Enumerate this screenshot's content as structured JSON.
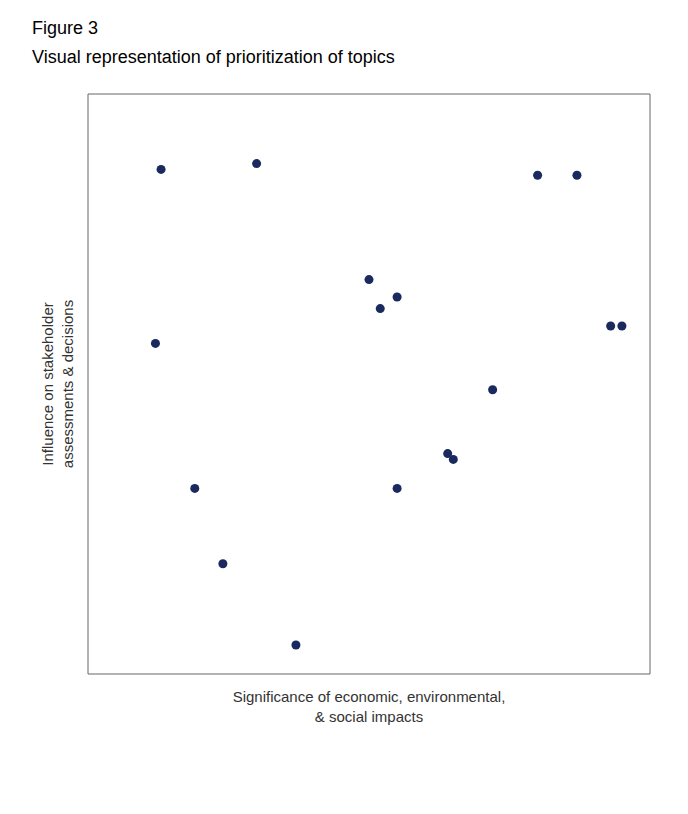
{
  "chart_data": {
    "type": "scatter",
    "title": "Figure 3",
    "subtitle": "Visual representation of prioritization of topics",
    "xlabel": [
      "Significance of economic, environmental,",
      "& social impacts"
    ],
    "ylabel": [
      "Influence on stakeholder",
      "assessments & decisions"
    ],
    "x": [
      0.13,
      0.3,
      0.5,
      0.52,
      0.55,
      0.65,
      0.72,
      0.8,
      0.87,
      0.93,
      0.12,
      0.19,
      0.24,
      0.37,
      0.55,
      0.64,
      0.95
    ],
    "y": [
      0.87,
      0.88,
      0.68,
      0.63,
      0.65,
      0.37,
      0.49,
      0.86,
      0.86,
      0.6,
      0.57,
      0.32,
      0.19,
      0.05,
      0.32,
      0.38,
      0.6
    ],
    "color": "#1a2a5e",
    "xlim": [
      0,
      1
    ],
    "ylim": [
      0,
      1
    ],
    "tick_labels": false
  }
}
